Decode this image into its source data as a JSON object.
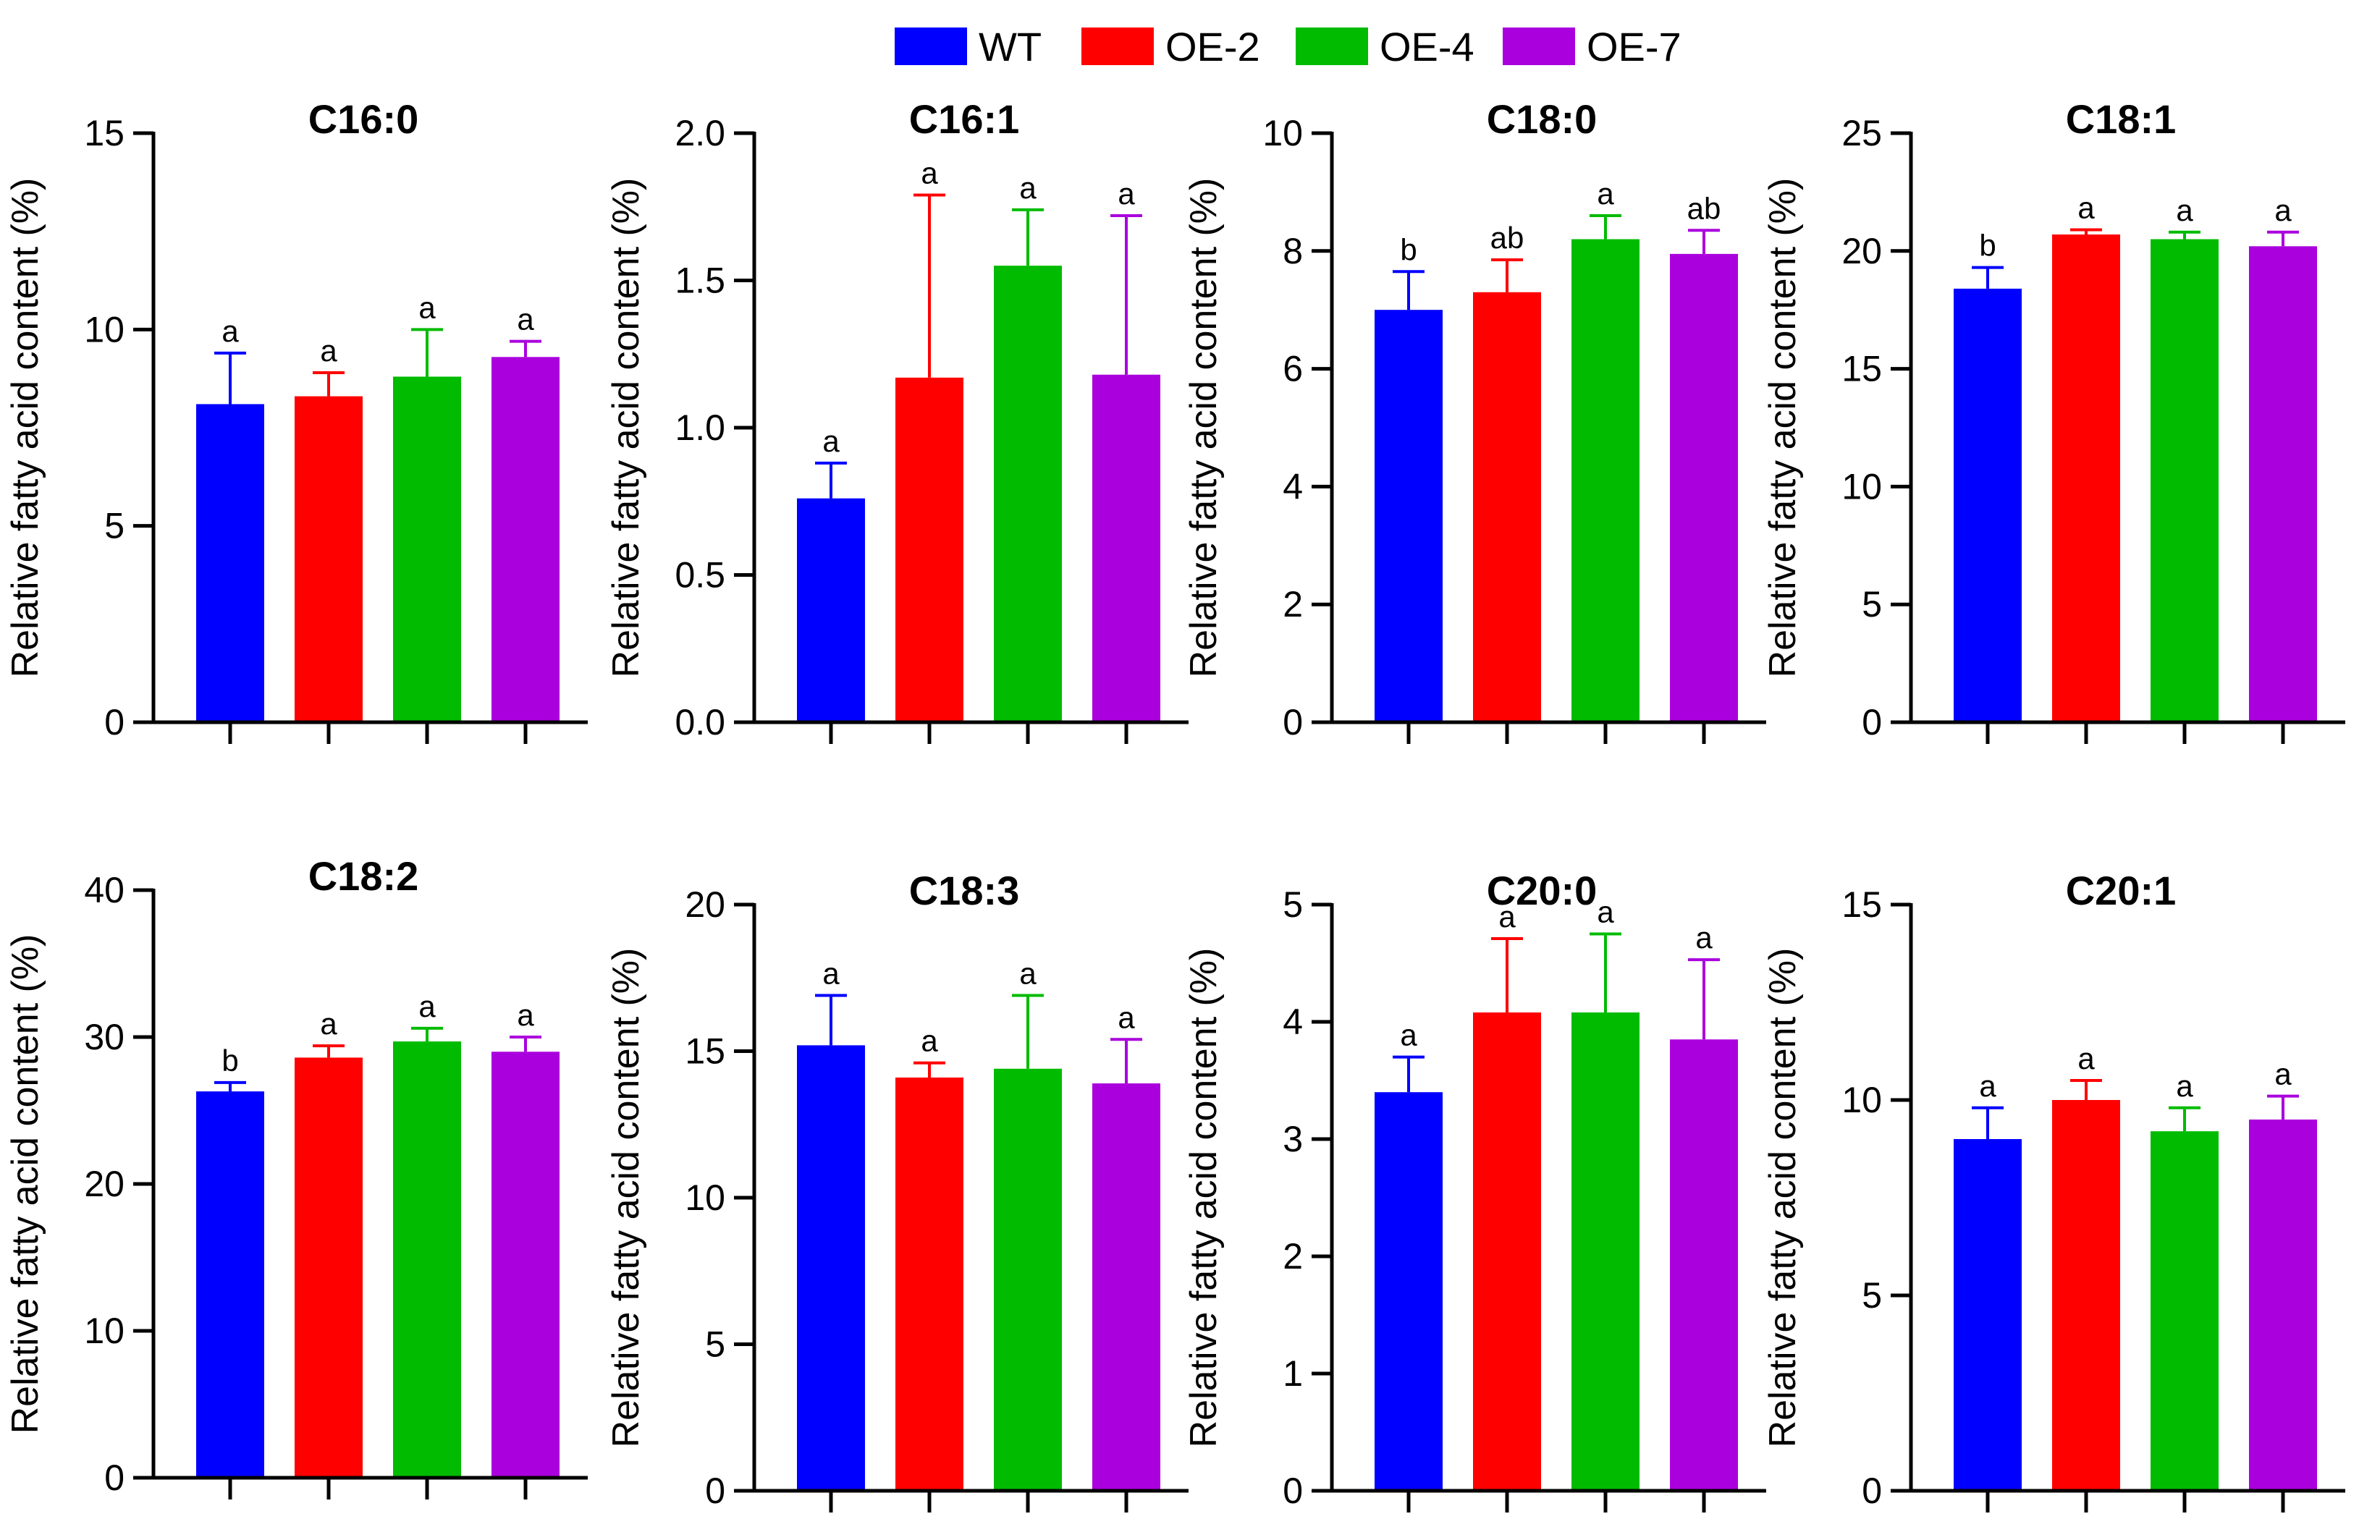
{
  "legend": {
    "items": [
      {
        "label": "WT",
        "color": "#0000ff"
      },
      {
        "label": "OE-2",
        "color": "#ff0000"
      },
      {
        "label": "OE-4",
        "color": "#00bb00"
      },
      {
        "label": "OE-7",
        "color": "#aa00dd"
      }
    ]
  },
  "chart_data": [
    {
      "type": "bar",
      "title": "C16:0",
      "ylabel": "Relative fatty acid content (%)",
      "categories": [
        "WT",
        "OE-2",
        "OE-4",
        "OE-7"
      ],
      "values": [
        8.1,
        8.3,
        8.8,
        9.3
      ],
      "errors": [
        1.3,
        0.6,
        1.2,
        0.4
      ],
      "letters": [
        "a",
        "a",
        "a",
        "a"
      ],
      "ylim": [
        0,
        15
      ],
      "yticks": [
        0,
        5,
        10,
        15
      ],
      "ytick_labels": [
        "0",
        "5",
        "10",
        "15"
      ]
    },
    {
      "type": "bar",
      "title": "C16:1",
      "ylabel": "Relative fatty acid content (%)",
      "categories": [
        "WT",
        "OE-2",
        "OE-4",
        "OE-7"
      ],
      "values": [
        0.76,
        1.17,
        1.55,
        1.18
      ],
      "errors": [
        0.12,
        0.62,
        0.19,
        0.54
      ],
      "letters": [
        "a",
        "a",
        "a",
        "a"
      ],
      "ylim": [
        0,
        2.0
      ],
      "yticks": [
        0,
        0.5,
        1.0,
        1.5,
        2.0
      ],
      "ytick_labels": [
        "0.0",
        "0.5",
        "1.0",
        "1.5",
        "2.0"
      ]
    },
    {
      "type": "bar",
      "title": "C18:0",
      "ylabel": "Relative fatty acid content (%)",
      "categories": [
        "WT",
        "OE-2",
        "OE-4",
        "OE-7"
      ],
      "values": [
        7.0,
        7.3,
        8.2,
        7.95
      ],
      "errors": [
        0.65,
        0.55,
        0.4,
        0.4
      ],
      "letters": [
        "b",
        "ab",
        "a",
        "ab"
      ],
      "ylim": [
        0,
        10
      ],
      "yticks": [
        0,
        2,
        4,
        6,
        8,
        10
      ],
      "ytick_labels": [
        "0",
        "2",
        "4",
        "6",
        "8",
        "10"
      ]
    },
    {
      "type": "bar",
      "title": "C18:1",
      "ylabel": "Relative fatty acid content (%)",
      "categories": [
        "WT",
        "OE-2",
        "OE-4",
        "OE-7"
      ],
      "values": [
        18.4,
        20.7,
        20.5,
        20.2
      ],
      "errors": [
        0.9,
        0.2,
        0.3,
        0.6
      ],
      "letters": [
        "b",
        "a",
        "a",
        "a"
      ],
      "ylim": [
        0,
        25
      ],
      "yticks": [
        0,
        5,
        10,
        15,
        20,
        25
      ],
      "ytick_labels": [
        "0",
        "5",
        "10",
        "15",
        "20",
        "25"
      ]
    },
    {
      "type": "bar",
      "title": "C18:2",
      "ylabel": "Relative fatty acid content (%)",
      "categories": [
        "WT",
        "OE-2",
        "OE-4",
        "OE-7"
      ],
      "values": [
        26.3,
        28.6,
        29.7,
        29.0
      ],
      "errors": [
        0.6,
        0.8,
        0.9,
        1.0
      ],
      "letters": [
        "b",
        "a",
        "a",
        "a"
      ],
      "ylim": [
        0,
        40
      ],
      "yticks": [
        0,
        10,
        20,
        30,
        40
      ],
      "ytick_labels": [
        "0",
        "10",
        "20",
        "30",
        "40"
      ]
    },
    {
      "type": "bar",
      "title": "C18:3",
      "ylabel": "Relative fatty acid content (%)",
      "categories": [
        "WT",
        "OE-2",
        "OE-4",
        "OE-7"
      ],
      "values": [
        15.2,
        14.1,
        14.4,
        13.9
      ],
      "errors": [
        1.7,
        0.5,
        2.5,
        1.5
      ],
      "letters": [
        "a",
        "a",
        "a",
        "a"
      ],
      "ylim": [
        0,
        20
      ],
      "yticks": [
        0,
        5,
        10,
        15,
        20
      ],
      "ytick_labels": [
        "0",
        "5",
        "10",
        "15",
        "20"
      ]
    },
    {
      "type": "bar",
      "title": "C20:0",
      "ylabel": "Relative fatty acid content (%)",
      "categories": [
        "WT",
        "OE-2",
        "OE-4",
        "OE-7"
      ],
      "values": [
        3.4,
        4.08,
        4.08,
        3.85
      ],
      "errors": [
        0.3,
        0.63,
        0.67,
        0.68
      ],
      "letters": [
        "a",
        "a",
        "a",
        "a"
      ],
      "ylim": [
        0,
        5
      ],
      "yticks": [
        0,
        1,
        2,
        3,
        4,
        5
      ],
      "ytick_labels": [
        "0",
        "1",
        "2",
        "3",
        "4",
        "5"
      ]
    },
    {
      "type": "bar",
      "title": "C20:1",
      "ylabel": "Relative fatty acid content (%)",
      "categories": [
        "WT",
        "OE-2",
        "OE-4",
        "OE-7"
      ],
      "values": [
        9.0,
        10.0,
        9.2,
        9.5
      ],
      "errors": [
        0.8,
        0.5,
        0.6,
        0.6
      ],
      "letters": [
        "a",
        "a",
        "a",
        "a"
      ],
      "ylim": [
        0,
        15
      ],
      "yticks": [
        0,
        5,
        10,
        15
      ],
      "ytick_labels": [
        "0",
        "5",
        "10",
        "15"
      ]
    }
  ]
}
